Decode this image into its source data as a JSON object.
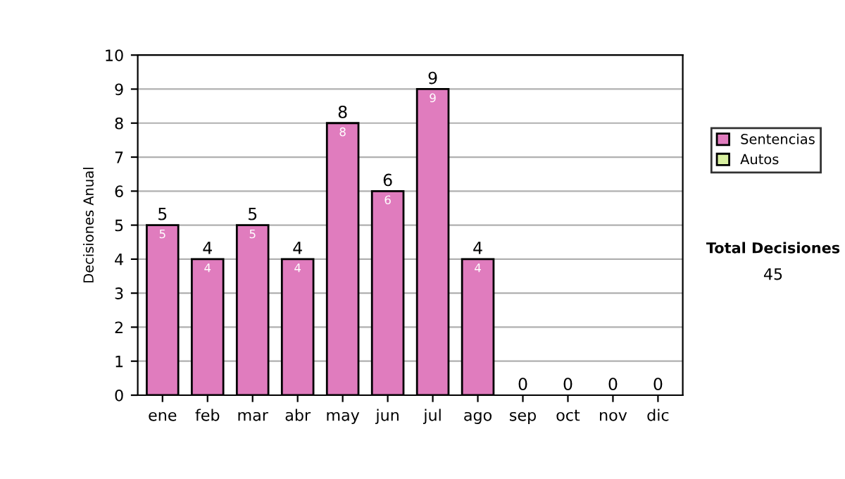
{
  "chart_data": {
    "type": "bar",
    "stacked": true,
    "ylabel": "Decisiones Anual",
    "categories": [
      "ene",
      "feb",
      "mar",
      "abr",
      "may",
      "jun",
      "jul",
      "ago",
      "sep",
      "oct",
      "nov",
      "dic"
    ],
    "series": [
      {
        "name": "Sentencias",
        "color": "#e07cbe",
        "values": [
          5,
          4,
          5,
          4,
          8,
          6,
          9,
          4,
          0,
          0,
          0,
          0
        ],
        "value_labels": [
          "5",
          "4",
          "5",
          "4",
          "8",
          "6",
          "9",
          "4",
          null,
          null,
          null,
          null
        ]
      },
      {
        "name": "Autos",
        "color": "#d8f0a0",
        "values": [
          0,
          0,
          0,
          0,
          0,
          0,
          0,
          0,
          0,
          0,
          0,
          0
        ]
      }
    ],
    "totals": [
      "5",
      "4",
      "5",
      "4",
      "8",
      "6",
      "9",
      "4",
      "0",
      "0",
      "0",
      "0"
    ],
    "ylim": [
      0,
      10
    ],
    "yticks": [
      0,
      1,
      2,
      3,
      4,
      5,
      6,
      7,
      8,
      9,
      10
    ],
    "grid": "y",
    "legend": "right",
    "annotations": [
      "Total Decisiones",
      "45"
    ]
  }
}
